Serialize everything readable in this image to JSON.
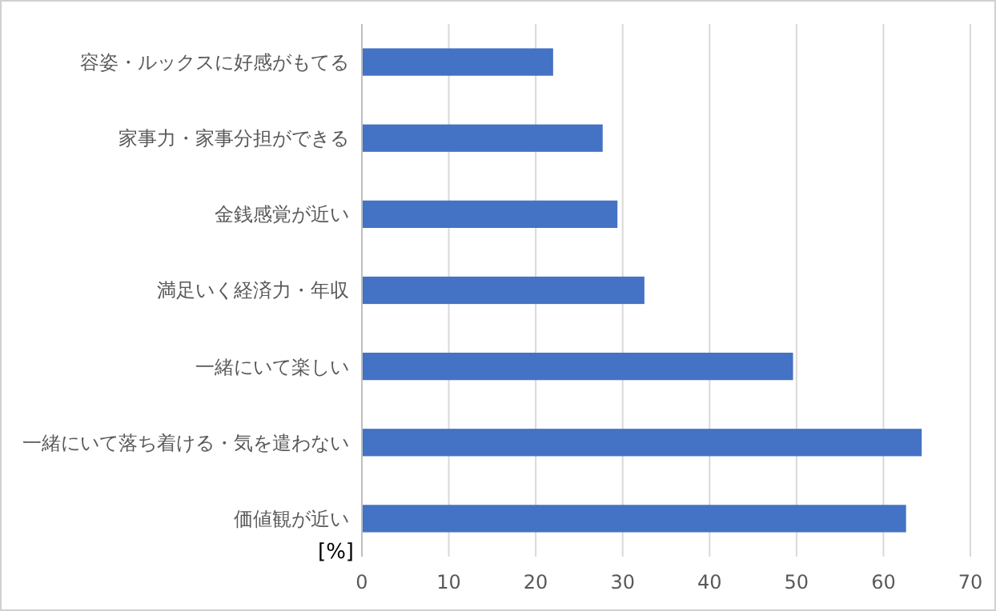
{
  "chart_data": {
    "type": "bar",
    "orientation": "horizontal",
    "xlabel": "[%]",
    "categories": [
      "容姿・ルックスに好感がもてる",
      "家事力・家事分担ができる",
      "金銭感覚が近い",
      "満足いく経済力・年収",
      "一緒にいて楽しい",
      "一緒にいて落ち着ける・気を遣わない",
      "価値観が近い"
    ],
    "values": [
      22.0,
      27.7,
      29.4,
      32.5,
      49.6,
      64.4,
      62.6
    ],
    "color": "#4472c4",
    "xlim": [
      0,
      70
    ],
    "xticks": [
      0,
      10,
      20,
      30,
      40,
      50,
      60,
      70
    ],
    "grid": "x"
  }
}
